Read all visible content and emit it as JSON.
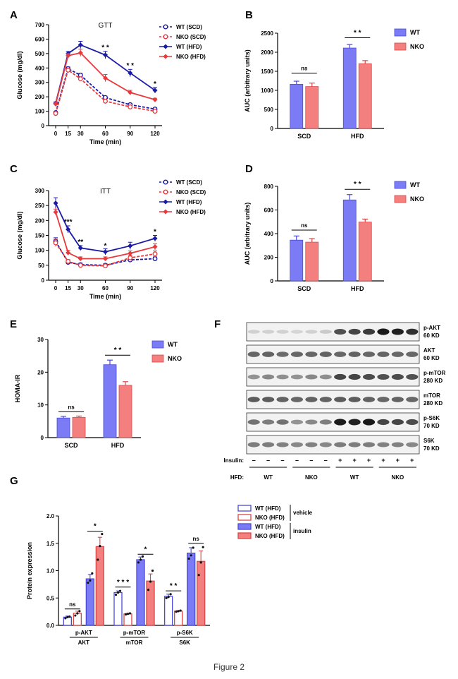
{
  "caption": "Figure 2",
  "colors": {
    "wt": "#1a1aa6",
    "nko": "#e8393c",
    "wt_bar": "#7b7bf5",
    "nko_bar": "#f47f7f",
    "wt_bar_edge": "#4a4ad8",
    "nko_bar_edge": "#d94848"
  },
  "chart_data": [
    {
      "panel": "A",
      "type": "line",
      "title": "GTT",
      "xlabel": "Time (min)",
      "ylabel": "Glucose (mg/dl)",
      "x": [
        0,
        15,
        30,
        60,
        90,
        120
      ],
      "xticks": [
        "0",
        "15",
        "30",
        "60",
        "90",
        "120"
      ],
      "yticks": [
        "0",
        "100",
        "200",
        "300",
        "400",
        "500",
        "600",
        "700"
      ],
      "ylim": [
        0,
        700
      ],
      "series": [
        {
          "name": "WT (SCD)",
          "values": [
            90,
            395,
            350,
            195,
            145,
            115
          ],
          "err": [
            8,
            12,
            12,
            10,
            10,
            8
          ],
          "color": "#1a1aa6",
          "dash": true,
          "marker": "open-circle"
        },
        {
          "name": "NKO (SCD)",
          "values": [
            85,
            385,
            325,
            170,
            130,
            100
          ],
          "err": [
            8,
            12,
            12,
            10,
            10,
            8
          ],
          "color": "#e8393c",
          "dash": true,
          "marker": "open-circle"
        },
        {
          "name": "WT (HFD)",
          "values": [
            155,
            500,
            560,
            490,
            365,
            245
          ],
          "err": [
            10,
            15,
            25,
            25,
            25,
            20
          ],
          "color": "#1a1aa6",
          "dash": false,
          "marker": "diamond"
        },
        {
          "name": "NKO (HFD)",
          "values": [
            150,
            485,
            505,
            330,
            230,
            180
          ],
          "err": [
            10,
            15,
            25,
            25,
            15,
            10
          ],
          "color": "#e8393c",
          "dash": false,
          "marker": "diamond"
        }
      ],
      "annotations": [
        {
          "x": 60,
          "y": 540,
          "text": "* *"
        },
        {
          "x": 90,
          "y": 415,
          "text": "* *"
        },
        {
          "x": 120,
          "y": 290,
          "text": "*"
        }
      ]
    },
    {
      "panel": "B",
      "type": "bar",
      "xlabel": "",
      "ylabel": "AUC (arbitrary units)",
      "categories": [
        "SCD",
        "HFD"
      ],
      "yticks": [
        "0",
        "500",
        "1000",
        "1500",
        "2000",
        "2500"
      ],
      "ylim": [
        0,
        2500
      ],
      "series": [
        {
          "name": "WT",
          "values": [
            1160,
            2110
          ],
          "err": [
            80,
            90
          ]
        },
        {
          "name": "NKO",
          "values": [
            1100,
            1700
          ],
          "err": [
            90,
            80
          ]
        }
      ],
      "annotations": [
        {
          "category": 0,
          "y": 1450,
          "text": "ns"
        },
        {
          "category": 1,
          "y": 2380,
          "text": "* *"
        }
      ]
    },
    {
      "panel": "C",
      "type": "line",
      "title": "ITT",
      "xlabel": "Time (min)",
      "ylabel": "Glucose (mg/dl)",
      "x": [
        0,
        15,
        30,
        60,
        90,
        120
      ],
      "xticks": [
        "0",
        "15",
        "30",
        "60",
        "90",
        "120"
      ],
      "yticks": [
        "0",
        "50",
        "100",
        "150",
        "200",
        "250",
        "300"
      ],
      "ylim": [
        0,
        300
      ],
      "series": [
        {
          "name": "WT (SCD)",
          "values": [
            130,
            60,
            52,
            50,
            68,
            72
          ],
          "err": [
            12,
            6,
            5,
            5,
            6,
            6
          ],
          "color": "#1a1aa6",
          "dash": true,
          "marker": "open-circle"
        },
        {
          "name": "NKO (SCD)",
          "values": [
            125,
            63,
            50,
            48,
            75,
            88
          ],
          "err": [
            12,
            6,
            5,
            5,
            8,
            10
          ],
          "color": "#e8393c",
          "dash": true,
          "marker": "open-circle"
        },
        {
          "name": "WT (HFD)",
          "values": [
            258,
            170,
            108,
            95,
            115,
            140
          ],
          "err": [
            18,
            12,
            8,
            10,
            12,
            10
          ],
          "color": "#1a1aa6",
          "dash": false,
          "marker": "diamond"
        },
        {
          "name": "NKO (HFD)",
          "values": [
            228,
            92,
            72,
            72,
            90,
            112
          ],
          "err": [
            10,
            8,
            6,
            6,
            8,
            10
          ],
          "color": "#e8393c",
          "dash": false,
          "marker": "diamond"
        }
      ],
      "annotations": [
        {
          "x": 15,
          "y": 195,
          "text": "***"
        },
        {
          "x": 30,
          "y": 128,
          "text": "**"
        },
        {
          "x": 60,
          "y": 115,
          "text": "*"
        },
        {
          "x": 120,
          "y": 162,
          "text": "*"
        }
      ]
    },
    {
      "panel": "D",
      "type": "bar",
      "xlabel": "",
      "ylabel": "AUC (arbitrary units)",
      "categories": [
        "SCD",
        "HFD"
      ],
      "yticks": [
        "0",
        "200",
        "400",
        "600",
        "800"
      ],
      "ylim": [
        0,
        800
      ],
      "series": [
        {
          "name": "WT",
          "values": [
            345,
            685
          ],
          "err": [
            35,
            45
          ]
        },
        {
          "name": "NKO",
          "values": [
            328,
            498
          ],
          "err": [
            30,
            25
          ]
        }
      ],
      "annotations": [
        {
          "category": 0,
          "y": 430,
          "text": "ns"
        },
        {
          "category": 1,
          "y": 775,
          "text": "* *"
        }
      ]
    },
    {
      "panel": "E",
      "type": "bar",
      "xlabel": "",
      "ylabel": "HOMA-IR",
      "categories": [
        "SCD",
        "HFD"
      ],
      "yticks": [
        "0",
        "10",
        "20",
        "30"
      ],
      "ylim": [
        0,
        30
      ],
      "series": [
        {
          "name": "WT",
          "values": [
            6.0,
            22.3
          ],
          "err": [
            0.5,
            1.4
          ]
        },
        {
          "name": "NKO",
          "values": [
            6.2,
            16.0
          ],
          "err": [
            0.4,
            1.1
          ]
        }
      ],
      "annotations": [
        {
          "category": 0,
          "y": 7.9,
          "text": "ns"
        },
        {
          "category": 1,
          "y": 25.2,
          "text": "* *"
        }
      ]
    },
    {
      "panel": "G",
      "type": "bar",
      "xlabel": "",
      "ylabel": "Protein expression",
      "categories": [
        "p-AKT",
        "p-mTOR",
        "p-S6K"
      ],
      "category_denominators": [
        "AKT",
        "mTOR",
        "S6K"
      ],
      "yticks": [
        "0.0",
        "0.5",
        "1.0",
        "1.5",
        "2.0"
      ],
      "ylim": [
        0,
        2.0
      ],
      "series": [
        {
          "name": "WT (HFD)",
          "group": "vehicle",
          "values": [
            0.15,
            0.6,
            0.53
          ],
          "err": [
            0.02,
            0.03,
            0.04
          ],
          "points": [
            [
              0.13,
              0.15,
              0.16
            ],
            [
              0.56,
              0.6,
              0.63
            ],
            [
              0.5,
              0.52,
              0.57
            ]
          ]
        },
        {
          "name": "NKO (HFD)",
          "group": "vehicle",
          "values": [
            0.22,
            0.21,
            0.26
          ],
          "err": [
            0.04,
            0.01,
            0.01
          ],
          "points": [
            [
              0.18,
              0.22,
              0.26
            ],
            [
              0.2,
              0.21,
              0.22
            ],
            [
              0.25,
              0.26,
              0.27
            ]
          ]
        },
        {
          "name": "WT (HFD)",
          "group": "insulin",
          "values": [
            0.85,
            1.2,
            1.32
          ],
          "err": [
            0.08,
            0.05,
            0.1
          ],
          "points": [
            [
              0.78,
              0.82,
              0.95
            ],
            [
              1.15,
              1.2,
              1.26
            ],
            [
              1.22,
              1.28,
              1.42
            ]
          ]
        },
        {
          "name": "NKO (HFD)",
          "group": "insulin",
          "values": [
            1.44,
            0.81,
            1.17
          ],
          "err": [
            0.17,
            0.13,
            0.19
          ],
          "points": [
            [
              1.2,
              1.45,
              1.67
            ],
            [
              0.65,
              0.8,
              1.0
            ],
            [
              0.92,
              1.15,
              1.43
            ]
          ]
        }
      ],
      "annotations": [
        {
          "category": 0,
          "pair": "vehicle",
          "y": 0.3,
          "text": "ns"
        },
        {
          "category": 0,
          "pair": "insulin",
          "y": 1.72,
          "text": "*"
        },
        {
          "category": 1,
          "pair": "vehicle",
          "y": 0.7,
          "text": "* * *"
        },
        {
          "category": 1,
          "pair": "insulin",
          "y": 1.3,
          "text": "*"
        },
        {
          "category": 2,
          "pair": "vehicle",
          "y": 0.63,
          "text": "* *"
        },
        {
          "category": 2,
          "pair": "insulin",
          "y": 1.5,
          "text": "ns"
        }
      ],
      "legend_groups": [
        "vehicle",
        "insulin"
      ]
    }
  ],
  "panel_letters": [
    "A",
    "B",
    "C",
    "D",
    "E",
    "F",
    "G"
  ],
  "blot": {
    "bands": [
      {
        "label": "p-AKT",
        "size": "60 KD",
        "intensity": [
          0.12,
          0.12,
          0.12,
          0.1,
          0.12,
          0.15,
          0.7,
          0.75,
          0.8,
          0.95,
          0.92,
          0.85
        ]
      },
      {
        "label": "AKT",
        "size": "60 KD",
        "intensity": [
          0.6,
          0.62,
          0.58,
          0.6,
          0.6,
          0.62,
          0.6,
          0.62,
          0.6,
          0.62,
          0.6,
          0.6
        ]
      },
      {
        "label": "p-mTOR",
        "size": "280 KD",
        "intensity": [
          0.4,
          0.45,
          0.42,
          0.4,
          0.45,
          0.42,
          0.75,
          0.75,
          0.72,
          0.7,
          0.72,
          0.7
        ]
      },
      {
        "label": "mTOR",
        "size": "280 KD",
        "intensity": [
          0.65,
          0.65,
          0.62,
          0.6,
          0.62,
          0.62,
          0.65,
          0.65,
          0.62,
          0.6,
          0.62,
          0.6
        ]
      },
      {
        "label": "p-S6K",
        "size": "70 KD",
        "intensity": [
          0.55,
          0.5,
          0.55,
          0.4,
          0.45,
          0.5,
          0.95,
          0.92,
          0.95,
          0.75,
          0.75,
          0.72
        ]
      },
      {
        "label": "S6K",
        "size": "70 KD",
        "intensity": [
          0.5,
          0.5,
          0.48,
          0.45,
          0.48,
          0.45,
          0.5,
          0.5,
          0.5,
          0.48,
          0.48,
          0.45
        ]
      }
    ],
    "insulin_label": "Insulin:",
    "insulin_marks": [
      "–",
      "–",
      "–",
      "–",
      "–",
      "–",
      "+",
      "+",
      "+",
      "+",
      "+",
      "+"
    ],
    "hfd_label": "HFD:",
    "hfd_groups": [
      "WT",
      "NKO",
      "WT",
      "NKO"
    ]
  }
}
